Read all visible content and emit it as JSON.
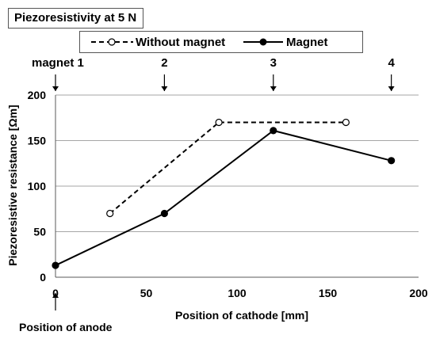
{
  "title": "Piezoresistivity at 5 N",
  "chart_data": {
    "type": "line",
    "title": "Piezoresistivity at 5 N",
    "xlabel": "Position of cathode  [mm]",
    "ylabel": "Piezoresistive resistance  [Ωm]",
    "xlim": [
      0,
      200
    ],
    "ylim": [
      0,
      200
    ],
    "x_ticks": [
      "0",
      "50",
      "100",
      "150",
      "200"
    ],
    "y_ticks": [
      "0",
      "50",
      "100",
      "150",
      "200"
    ],
    "grid": "horizontal",
    "legend_position": "top",
    "series": [
      {
        "name": "Without magnet",
        "style": "dashed",
        "marker": "open-circle",
        "color": "#000000",
        "points": [
          [
            30,
            70
          ],
          [
            90,
            170
          ],
          [
            160,
            170
          ]
        ]
      },
      {
        "name": "Magnet",
        "style": "solid",
        "marker": "filled-circle",
        "color": "#000000",
        "points": [
          [
            0,
            13
          ],
          [
            60,
            70
          ],
          [
            120,
            161
          ],
          [
            185,
            128
          ]
        ]
      }
    ],
    "annotations": [
      {
        "text": "magnet 1",
        "x": 0,
        "type": "top-arrow"
      },
      {
        "text": "2",
        "x": 60,
        "type": "top-arrow"
      },
      {
        "text": "3",
        "x": 120,
        "type": "top-arrow"
      },
      {
        "text": "4",
        "x": 185,
        "type": "top-arrow"
      },
      {
        "text": "Position of anode",
        "x": 0,
        "type": "bottom-arrow"
      }
    ]
  }
}
